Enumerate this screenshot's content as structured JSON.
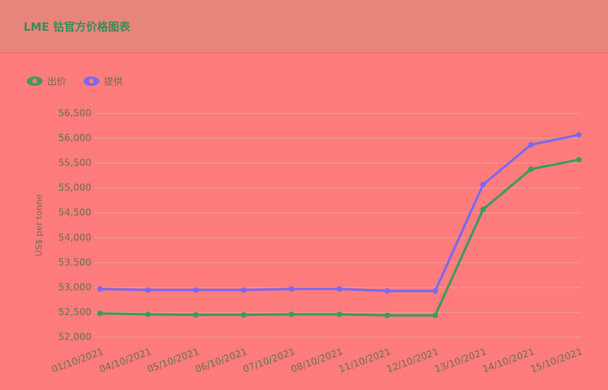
{
  "chart_data": {
    "type": "line",
    "title": "LME 钴官方价格图表",
    "y_label": "US$ per tonne",
    "categories": [
      "01/10/2021",
      "04/10/2021",
      "05/10/2021",
      "06/10/2021",
      "07/10/2021",
      "08/10/2021",
      "11/10/2021",
      "12/10/2021",
      "13/10/2021",
      "14/10/2021",
      "15/10/2021"
    ],
    "series": [
      {
        "name": "出价",
        "color": "#3d9a5c",
        "values": [
          52480,
          52460,
          52450,
          52450,
          52460,
          52460,
          52440,
          52440,
          54570,
          55380,
          55570
        ]
      },
      {
        "name": "提供",
        "color": "#7b68ee",
        "values": [
          52970,
          52950,
          52950,
          52950,
          52970,
          52970,
          52930,
          52930,
          55070,
          55870,
          56070
        ]
      }
    ],
    "ylim": [
      52000,
      56500
    ],
    "yticks": [
      {
        "value": 52000,
        "label": "52,000"
      },
      {
        "value": 52500,
        "label": "52,500"
      },
      {
        "value": 53000,
        "label": "53,000"
      },
      {
        "value": 53500,
        "label": "53,500"
      },
      {
        "value": 54000,
        "label": "54,000"
      },
      {
        "value": 54500,
        "label": "54,500"
      },
      {
        "value": 55000,
        "label": "55,000"
      },
      {
        "value": 55500,
        "label": "55,500"
      },
      {
        "value": 56000,
        "label": "56,000"
      },
      {
        "value": 56500,
        "label": "56,500"
      }
    ],
    "grid": true
  }
}
